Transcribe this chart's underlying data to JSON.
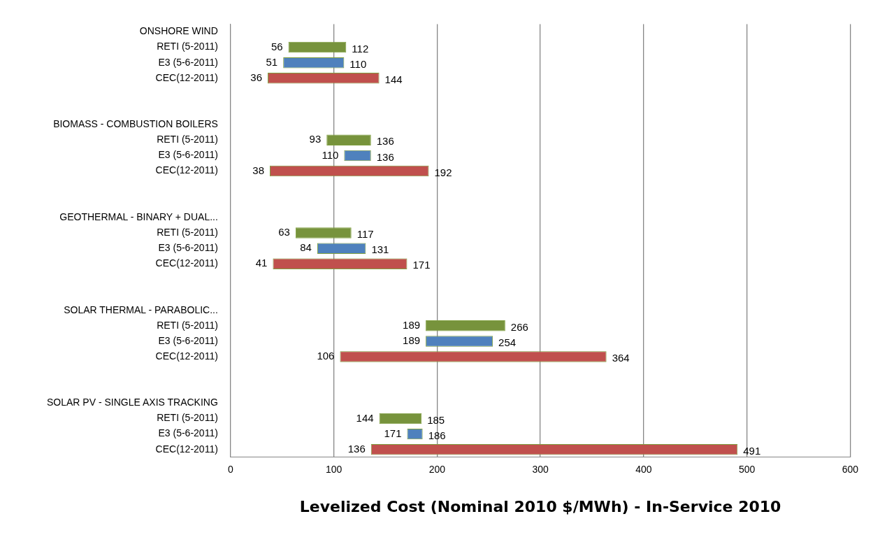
{
  "chart_data": {
    "type": "bar",
    "orientation": "horizontal",
    "xlabel": "Levelized Cost (Nominal 2010 $/MWh) - In-Service 2010",
    "categories": [
      "ONSHORE WIND",
      "RETI (5-2011)",
      "E3 (5-6-2011)",
      "CEC(12-2011)",
      null,
      null,
      "BIOMASS - COMBUSTION BOILERS",
      "RETI (5-2011)",
      "E3 (5-6-2011)",
      "CEC(12-2011)",
      null,
      null,
      "GEOTHERMAL - BINARY + DUAL...",
      "RETI (5-2011)",
      "E3 (5-6-2011)",
      "CEC(12-2011)",
      null,
      null,
      "SOLAR THERMAL - PARABOLIC...",
      "RETI (5-2011)",
      "E3 (5-6-2011)",
      "CEC(12-2011)",
      null,
      null,
      "SOLAR PV - SINGLE AXIS TRACKING",
      "RETI (5-2011)",
      "E3 (5-6-2011)",
      "CEC(12-2011)"
    ],
    "series": [
      {
        "color": "#77933c",
        "values": [
          null,
          56,
          null,
          null,
          null,
          null,
          null,
          43,
          null,
          null,
          null,
          null,
          null,
          54,
          null,
          null,
          null,
          null,
          null,
          77,
          null,
          null,
          null,
          null,
          null,
          41,
          null,
          null
        ],
        "base": [
          null,
          56,
          null,
          null,
          null,
          null,
          null,
          93,
          null,
          null,
          null,
          null,
          null,
          63,
          null,
          null,
          null,
          null,
          null,
          189,
          null,
          null,
          null,
          null,
          null,
          144,
          null,
          null
        ]
      },
      {
        "color": "#4f81bd",
        "values": [
          null,
          null,
          59,
          null,
          null,
          null,
          null,
          null,
          26,
          null,
          null,
          null,
          null,
          null,
          47,
          null,
          null,
          null,
          null,
          null,
          65,
          null,
          null,
          null,
          null,
          null,
          15,
          null
        ],
        "base": [
          null,
          null,
          51,
          null,
          null,
          null,
          null,
          null,
          110,
          null,
          null,
          null,
          null,
          null,
          84,
          null,
          null,
          null,
          null,
          null,
          189,
          null,
          null,
          null,
          null,
          null,
          171,
          null
        ]
      },
      {
        "color": "#c0504d",
        "values": [
          null,
          null,
          null,
          108,
          null,
          null,
          null,
          null,
          null,
          154,
          null,
          null,
          null,
          null,
          null,
          130,
          null,
          null,
          null,
          null,
          null,
          258,
          null,
          null,
          null,
          null,
          null,
          355
        ],
        "base": [
          null,
          null,
          null,
          36,
          null,
          null,
          null,
          null,
          null,
          38,
          null,
          null,
          null,
          null,
          null,
          41,
          null,
          null,
          null,
          null,
          null,
          106,
          null,
          null,
          null,
          null,
          null,
          136
        ]
      }
    ],
    "xlim": [
      0,
      600
    ],
    "xticks": [
      0,
      100,
      200,
      300,
      400,
      500,
      600
    ],
    "grid": "x",
    "legend": false,
    "annotations": [
      "56",
      "112",
      "51",
      "110",
      "36",
      "144",
      "93",
      "136",
      "110",
      "136",
      "38",
      "192",
      "63",
      "117",
      "84",
      "131",
      "41",
      "171",
      "189",
      "266",
      "189",
      "254",
      "106",
      "364",
      "144",
      "185",
      "171",
      "186",
      "136",
      "491"
    ]
  }
}
